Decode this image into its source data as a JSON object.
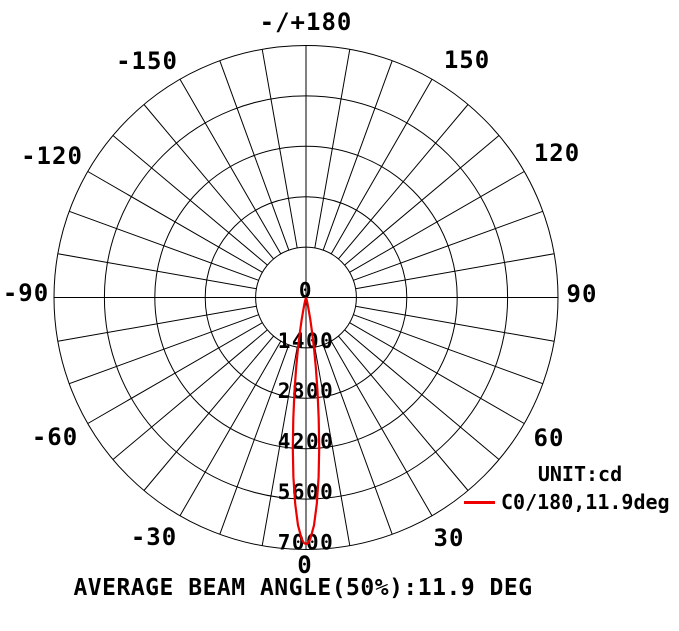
{
  "chart_data": {
    "type": "line",
    "subtype": "polar-intensity-distribution",
    "unit_label": "UNIT:cd",
    "caption": "AVERAGE BEAM ANGLE(50%):11.9 DEG",
    "angle_tick_step_deg": 10,
    "angle_tick_labels": [
      "-/+180",
      "-150",
      "150",
      "-120",
      "120",
      "-90",
      "90",
      "-60",
      "60",
      "-30",
      "30",
      "0"
    ],
    "radial_tick_labels": [
      "0",
      "1400",
      "2800",
      "4200",
      "5600",
      "7000"
    ],
    "radial_tick_values": [
      0,
      1400,
      2800,
      4200,
      5600,
      7000
    ],
    "radial_max": 7000,
    "grid_color": "#000000",
    "series": [
      {
        "name": "C0/180,11.9deg",
        "color": "#ee0000",
        "peak_cd": 6850,
        "beam_angle_50pct_deg": 11.9,
        "points": [
          [
            -15,
            83
          ],
          [
            -14,
            147
          ],
          [
            -13,
            249
          ],
          [
            -12,
            407
          ],
          [
            -11,
            639
          ],
          [
            -10,
            964
          ],
          [
            -9,
            1399
          ],
          [
            -8,
            1953
          ],
          [
            -7,
            2621
          ],
          [
            -6,
            3382
          ],
          [
            -5,
            4196
          ],
          [
            -4,
            5005
          ],
          [
            -3,
            5742
          ],
          [
            -2,
            6333
          ],
          [
            -1,
            6717
          ],
          [
            -0.5,
            6817
          ],
          [
            0,
            6850
          ],
          [
            0.5,
            6817
          ],
          [
            1,
            6717
          ],
          [
            2,
            6333
          ],
          [
            3,
            5742
          ],
          [
            4,
            5005
          ],
          [
            5,
            4196
          ],
          [
            6,
            3382
          ],
          [
            7,
            2621
          ],
          [
            8,
            1953
          ],
          [
            9,
            1399
          ],
          [
            10,
            964
          ],
          [
            11,
            639
          ],
          [
            12,
            407
          ],
          [
            13,
            249
          ],
          [
            14,
            147
          ],
          [
            15,
            83
          ]
        ]
      }
    ]
  }
}
